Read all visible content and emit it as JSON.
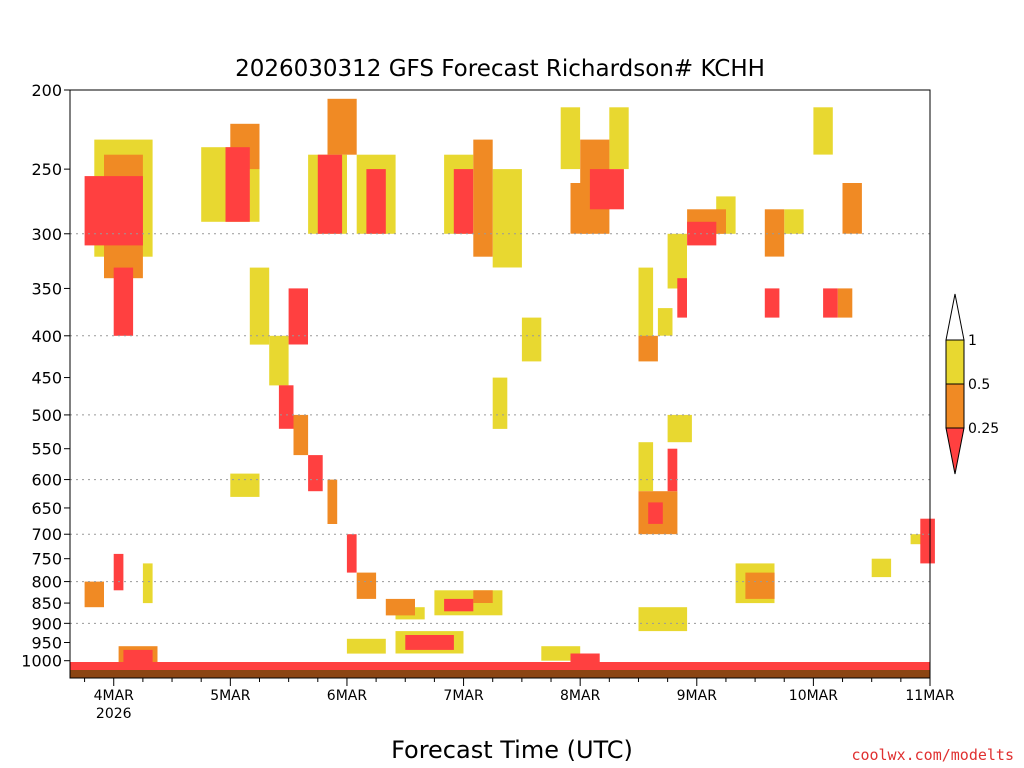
{
  "chart_data": {
    "type": "heatmap",
    "title": "2026030312 GFS Forecast Richardson# KCHH",
    "xlabel": "Forecast Time (UTC)",
    "ylabel": "",
    "credit": "coolwx.com/modelts",
    "x_unit": "hours since 2026-03-03 12 UTC",
    "xlim": [
      3,
      180
    ],
    "x_ticks": [
      {
        "x": 12,
        "label": "4MAR",
        "sublabel": "2026"
      },
      {
        "x": 36,
        "label": "5MAR",
        "sublabel": ""
      },
      {
        "x": 60,
        "label": "6MAR",
        "sublabel": ""
      },
      {
        "x": 84,
        "label": "7MAR",
        "sublabel": ""
      },
      {
        "x": 108,
        "label": "8MAR",
        "sublabel": ""
      },
      {
        "x": 132,
        "label": "9MAR",
        "sublabel": ""
      },
      {
        "x": 156,
        "label": "10MAR",
        "sublabel": ""
      },
      {
        "x": 180,
        "label": "11MAR",
        "sublabel": ""
      }
    ],
    "y_unit": "hPa",
    "y_scale": "log",
    "ylim": [
      1050,
      200
    ],
    "y_ticks": [
      200,
      250,
      300,
      350,
      400,
      450,
      500,
      550,
      600,
      650,
      700,
      750,
      800,
      850,
      900,
      950,
      1000
    ],
    "y_gridlines": [
      300,
      400,
      500,
      600,
      700,
      800,
      900
    ],
    "legend": {
      "placement": "right",
      "levels": [
        {
          "label": "1",
          "color": "#ffffff"
        },
        {
          "label": "0.5",
          "color": "#e8d830"
        },
        {
          "label": "0.25",
          "color": "#f08a24"
        },
        {
          "label": "",
          "color": "#ff4040"
        }
      ]
    },
    "colors": {
      "lt_0_25": "#ff4040",
      "0_25_to_0_5": "#f08a24",
      "0_5_to_1": "#e8d830",
      "ground": "#8b4513"
    },
    "regions": [
      {
        "x0": 6,
        "x1": 18,
        "p0": 255,
        "p1": 310,
        "cls": "red"
      },
      {
        "x0": 10,
        "x1": 18,
        "p0": 240,
        "p1": 340,
        "cls": "orange"
      },
      {
        "x0": 8,
        "x1": 20,
        "p0": 230,
        "p1": 320,
        "cls": "yellow"
      },
      {
        "x0": 12,
        "x1": 16,
        "p0": 330,
        "p1": 400,
        "cls": "red"
      },
      {
        "x0": 30,
        "x1": 42,
        "p0": 235,
        "p1": 290,
        "cls": "yellow"
      },
      {
        "x0": 35,
        "x1": 40,
        "p0": 235,
        "p1": 290,
        "cls": "red"
      },
      {
        "x0": 36,
        "x1": 42,
        "p0": 220,
        "p1": 250,
        "cls": "orange"
      },
      {
        "x0": 40,
        "x1": 44,
        "p0": 330,
        "p1": 410,
        "cls": "yellow"
      },
      {
        "x0": 48,
        "x1": 52,
        "p0": 350,
        "p1": 410,
        "cls": "red"
      },
      {
        "x0": 52,
        "x1": 60,
        "p0": 240,
        "p1": 300,
        "cls": "yellow"
      },
      {
        "x0": 54,
        "x1": 59,
        "p0": 240,
        "p1": 300,
        "cls": "red"
      },
      {
        "x0": 56,
        "x1": 62,
        "p0": 205,
        "p1": 240,
        "cls": "orange"
      },
      {
        "x0": 62,
        "x1": 70,
        "p0": 240,
        "p1": 300,
        "cls": "yellow"
      },
      {
        "x0": 64,
        "x1": 68,
        "p0": 250,
        "p1": 300,
        "cls": "red"
      },
      {
        "x0": 80,
        "x1": 86,
        "p0": 240,
        "p1": 300,
        "cls": "yellow"
      },
      {
        "x0": 82,
        "x1": 86,
        "p0": 250,
        "p1": 300,
        "cls": "red"
      },
      {
        "x0": 86,
        "x1": 90,
        "p0": 230,
        "p1": 320,
        "cls": "orange"
      },
      {
        "x0": 90,
        "x1": 96,
        "p0": 250,
        "p1": 330,
        "cls": "yellow"
      },
      {
        "x0": 104,
        "x1": 108,
        "p0": 210,
        "p1": 250,
        "cls": "yellow"
      },
      {
        "x0": 106,
        "x1": 110,
        "p0": 260,
        "p1": 300,
        "cls": "orange"
      },
      {
        "x0": 110,
        "x1": 117,
        "p0": 250,
        "p1": 280,
        "cls": "red"
      },
      {
        "x0": 108,
        "x1": 114,
        "p0": 230,
        "p1": 300,
        "cls": "orange"
      },
      {
        "x0": 114,
        "x1": 118,
        "p0": 210,
        "p1": 250,
        "cls": "yellow"
      },
      {
        "x0": 120,
        "x1": 123,
        "p0": 330,
        "p1": 420,
        "cls": "yellow"
      },
      {
        "x0": 126,
        "x1": 130,
        "p0": 300,
        "p1": 350,
        "cls": "yellow"
      },
      {
        "x0": 130,
        "x1": 136,
        "p0": 290,
        "p1": 310,
        "cls": "red"
      },
      {
        "x0": 130,
        "x1": 138,
        "p0": 280,
        "p1": 300,
        "cls": "orange"
      },
      {
        "x0": 136,
        "x1": 140,
        "p0": 270,
        "p1": 300,
        "cls": "yellow"
      },
      {
        "x0": 146,
        "x1": 150,
        "p0": 280,
        "p1": 320,
        "cls": "orange"
      },
      {
        "x0": 150,
        "x1": 154,
        "p0": 280,
        "p1": 300,
        "cls": "yellow"
      },
      {
        "x0": 162,
        "x1": 166,
        "p0": 260,
        "p1": 300,
        "cls": "orange"
      },
      {
        "x0": 156,
        "x1": 160,
        "p0": 210,
        "p1": 240,
        "cls": "yellow"
      },
      {
        "x0": 120,
        "x1": 124,
        "p0": 400,
        "p1": 430,
        "cls": "orange"
      },
      {
        "x0": 124,
        "x1": 127,
        "p0": 370,
        "p1": 400,
        "cls": "yellow"
      },
      {
        "x0": 128,
        "x1": 130,
        "p0": 340,
        "p1": 380,
        "cls": "red"
      },
      {
        "x0": 146,
        "x1": 149,
        "p0": 350,
        "p1": 380,
        "cls": "red"
      },
      {
        "x0": 158,
        "x1": 161,
        "p0": 350,
        "p1": 380,
        "cls": "red"
      },
      {
        "x0": 161,
        "x1": 164,
        "p0": 350,
        "p1": 380,
        "cls": "orange"
      },
      {
        "x0": 126,
        "x1": 131,
        "p0": 500,
        "p1": 540,
        "cls": "yellow"
      },
      {
        "x0": 126,
        "x1": 128,
        "p0": 550,
        "p1": 620,
        "cls": "red"
      },
      {
        "x0": 120,
        "x1": 128,
        "p0": 620,
        "p1": 700,
        "cls": "orange"
      },
      {
        "x0": 122,
        "x1": 125,
        "p0": 640,
        "p1": 680,
        "cls": "red"
      },
      {
        "x0": 120,
        "x1": 123,
        "p0": 540,
        "p1": 620,
        "cls": "yellow"
      },
      {
        "x0": 140,
        "x1": 148,
        "p0": 760,
        "p1": 850,
        "cls": "yellow"
      },
      {
        "x0": 142,
        "x1": 148,
        "p0": 780,
        "p1": 840,
        "cls": "orange"
      },
      {
        "x0": 120,
        "x1": 130,
        "p0": 860,
        "p1": 920,
        "cls": "yellow"
      },
      {
        "x0": 168,
        "x1": 172,
        "p0": 750,
        "p1": 790,
        "cls": "yellow"
      },
      {
        "x0": 178,
        "x1": 181,
        "p0": 670,
        "p1": 760,
        "cls": "red"
      },
      {
        "x0": 176,
        "x1": 179,
        "p0": 700,
        "p1": 720,
        "cls": "yellow"
      },
      {
        "x0": 78,
        "x1": 92,
        "p0": 820,
        "p1": 880,
        "cls": "yellow"
      },
      {
        "x0": 80,
        "x1": 86,
        "p0": 840,
        "p1": 870,
        "cls": "red"
      },
      {
        "x0": 86,
        "x1": 90,
        "p0": 820,
        "p1": 850,
        "cls": "orange"
      },
      {
        "x0": 68,
        "x1": 74,
        "p0": 840,
        "p1": 880,
        "cls": "orange"
      },
      {
        "x0": 70,
        "x1": 76,
        "p0": 860,
        "p1": 890,
        "cls": "yellow"
      },
      {
        "x0": 72,
        "x1": 82,
        "p0": 930,
        "p1": 970,
        "cls": "red"
      },
      {
        "x0": 70,
        "x1": 84,
        "p0": 920,
        "p1": 980,
        "cls": "yellow"
      },
      {
        "x0": 60,
        "x1": 68,
        "p0": 940,
        "p1": 980,
        "cls": "yellow"
      },
      {
        "x0": 6,
        "x1": 10,
        "p0": 800,
        "p1": 860,
        "cls": "orange"
      },
      {
        "x0": 12,
        "x1": 14,
        "p0": 740,
        "p1": 820,
        "cls": "red"
      },
      {
        "x0": 18,
        "x1": 20,
        "p0": 760,
        "p1": 850,
        "cls": "yellow"
      },
      {
        "x0": 13,
        "x1": 21,
        "p0": 960,
        "p1": 1010,
        "cls": "orange"
      },
      {
        "x0": 14,
        "x1": 20,
        "p0": 970,
        "p1": 1005,
        "cls": "red"
      },
      {
        "x0": 100,
        "x1": 108,
        "p0": 960,
        "p1": 1000,
        "cls": "yellow"
      },
      {
        "x0": 106,
        "x1": 112,
        "p0": 980,
        "p1": 1010,
        "cls": "red"
      },
      {
        "x0": 44,
        "x1": 48,
        "p0": 400,
        "p1": 460,
        "cls": "yellow"
      },
      {
        "x0": 46,
        "x1": 49,
        "p0": 460,
        "p1": 520,
        "cls": "red"
      },
      {
        "x0": 49,
        "x1": 52,
        "p0": 500,
        "p1": 560,
        "cls": "orange"
      },
      {
        "x0": 52,
        "x1": 55,
        "p0": 560,
        "p1": 620,
        "cls": "red"
      },
      {
        "x0": 56,
        "x1": 58,
        "p0": 600,
        "p1": 680,
        "cls": "orange"
      },
      {
        "x0": 60,
        "x1": 62,
        "p0": 700,
        "p1": 780,
        "cls": "red"
      },
      {
        "x0": 62,
        "x1": 66,
        "p0": 780,
        "p1": 840,
        "cls": "orange"
      },
      {
        "x0": 36,
        "x1": 42,
        "p0": 590,
        "p1": 630,
        "cls": "yellow"
      },
      {
        "x0": 96,
        "x1": 100,
        "p0": 380,
        "p1": 430,
        "cls": "yellow"
      },
      {
        "x0": 90,
        "x1": 93,
        "p0": 450,
        "p1": 520,
        "cls": "yellow"
      }
    ]
  }
}
